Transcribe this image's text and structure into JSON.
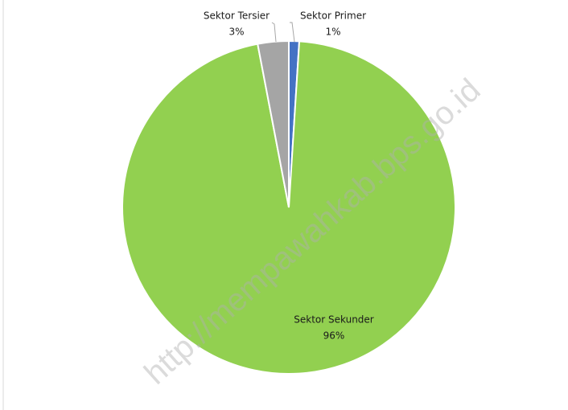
{
  "watermark": "http://mempawahkab.bps.go.id",
  "chart_data": {
    "type": "pie",
    "categories": [
      "Sektor Primer",
      "Sektor Sekunder",
      "Sektor Tersier"
    ],
    "values": [
      1,
      96,
      3
    ],
    "value_labels": [
      "1%",
      "96%",
      "3%"
    ],
    "colors": [
      "#4472c4",
      "#92d050",
      "#a5a5a5"
    ]
  }
}
